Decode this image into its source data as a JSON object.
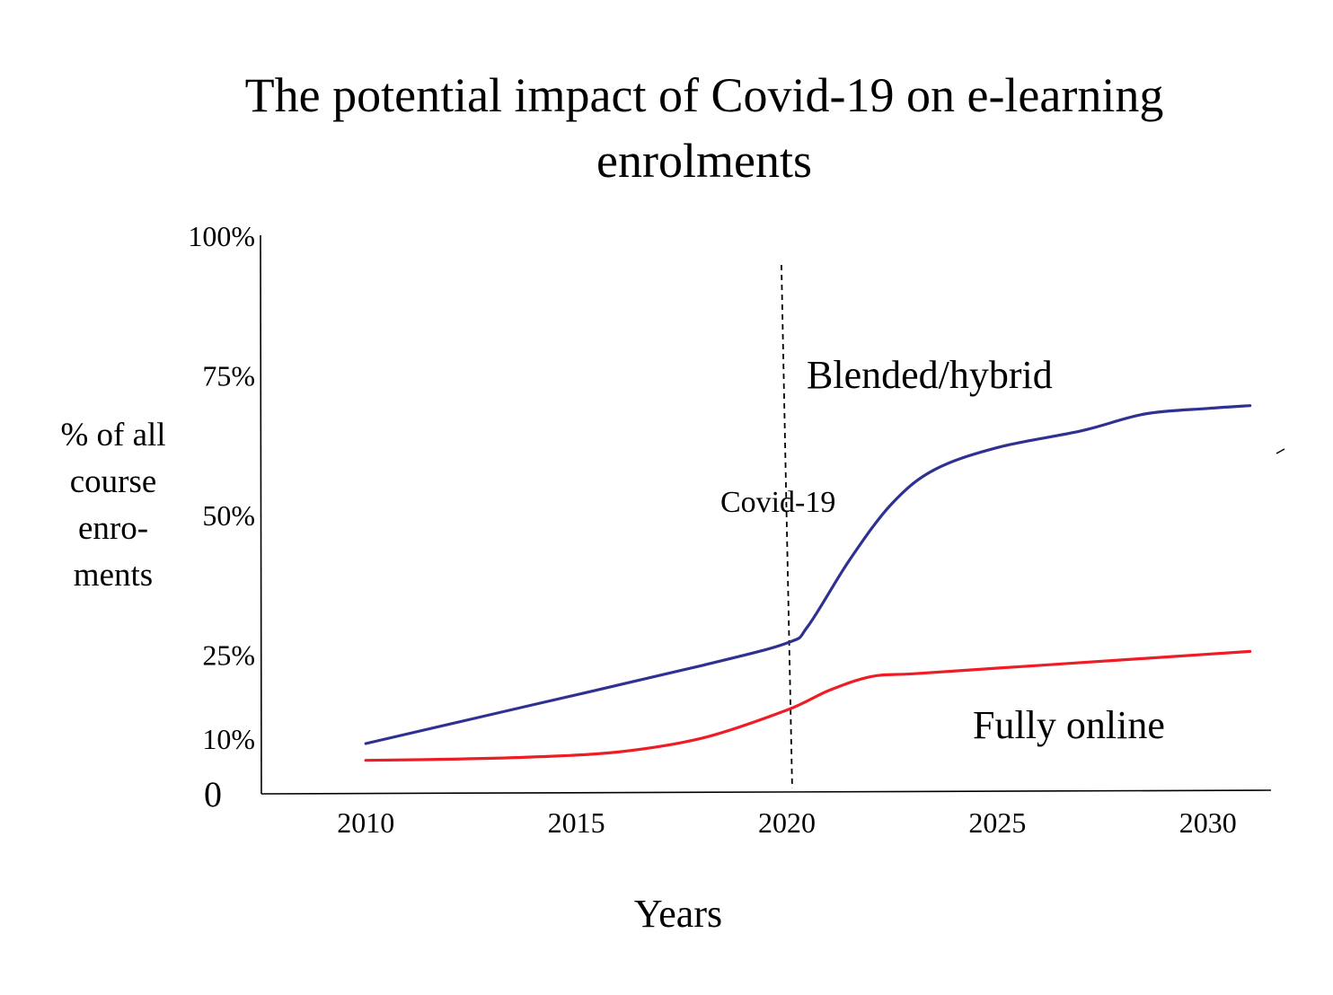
{
  "chart_data": {
    "type": "line",
    "title_lines": [
      "The potential impact of Covid-19 on e-learning",
      "enrolments"
    ],
    "ylabel_lines": [
      "% of all",
      "course",
      "enro-",
      "ments"
    ],
    "xlabel": "Years",
    "x_ticks": [
      {
        "value": 2010,
        "label": "2010"
      },
      {
        "value": 2015,
        "label": "2015"
      },
      {
        "value": 2020,
        "label": "2020"
      },
      {
        "value": 2025,
        "label": "2025"
      },
      {
        "value": 2030,
        "label": "2030"
      }
    ],
    "y_ticks": [
      {
        "value": 100,
        "label": "100%"
      },
      {
        "value": 75,
        "label": "75%"
      },
      {
        "value": 50,
        "label": "50%"
      },
      {
        "value": 25,
        "label": "25%"
      },
      {
        "value": 10,
        "label": "10%"
      }
    ],
    "y_zero_label": "0",
    "xlim": [
      2007.5,
      2031.5
    ],
    "ylim": [
      0,
      100
    ],
    "series": [
      {
        "name": "Blended/hybrid",
        "color": "#2e3192",
        "x": [
          2010,
          2014,
          2018,
          2020,
          2020.5,
          2021.5,
          2022.5,
          2023.5,
          2025,
          2027,
          2028.5,
          2030,
          2031
        ],
        "y": [
          9,
          16,
          23,
          27,
          30,
          42,
          52,
          58,
          62,
          65,
          68,
          69,
          69.5
        ]
      },
      {
        "name": "Fully online",
        "color": "#ee1c25",
        "x": [
          2010,
          2012,
          2014,
          2016,
          2018,
          2020,
          2021,
          2022,
          2023,
          2025,
          2027,
          2029,
          2031
        ],
        "y": [
          6,
          6.2,
          6.6,
          7.5,
          10,
          15,
          18.5,
          21,
          21.5,
          22.5,
          23.5,
          24.5,
          25.5
        ]
      }
    ],
    "annotations": [
      {
        "text": "Covid-19",
        "type": "vertical-dashed-line",
        "x": 2020
      }
    ]
  }
}
